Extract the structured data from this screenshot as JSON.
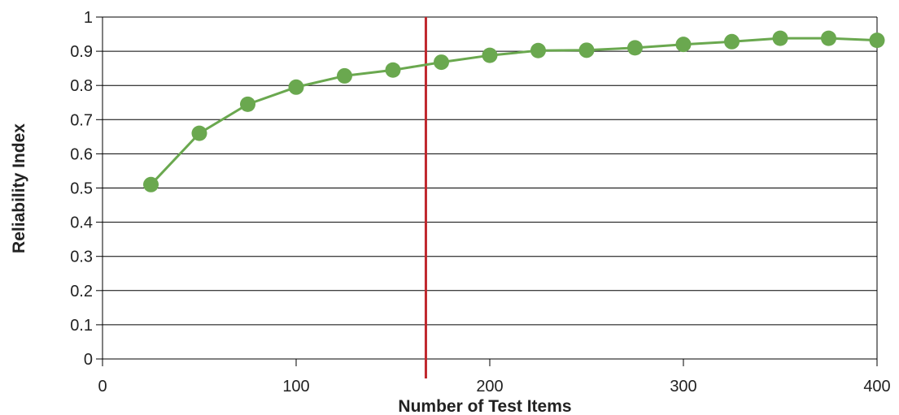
{
  "chart_data": {
    "type": "line",
    "title": "",
    "xlabel": "Number of Test Items",
    "ylabel": "Reliability Index",
    "xlim": [
      0,
      400
    ],
    "ylim": [
      0,
      1
    ],
    "x_ticks": [
      "0",
      "100",
      "200",
      "300",
      "400"
    ],
    "y_ticks": [
      "0",
      "0.1",
      "0.2",
      "0.3",
      "0.4",
      "0.5",
      "0.6",
      "0.7",
      "0.8",
      "0.9",
      "1"
    ],
    "grid": "horizontal",
    "series": [
      {
        "color": "#6aa84f",
        "x": [
          25,
          50,
          75,
          100,
          125,
          150,
          175,
          200,
          225,
          250,
          275,
          300,
          325,
          350,
          375,
          400
        ],
        "y": [
          0.51,
          0.66,
          0.745,
          0.795,
          0.828,
          0.845,
          0.868,
          0.888,
          0.902,
          0.903,
          0.91,
          0.92,
          0.928,
          0.938,
          0.938,
          0.932
        ]
      }
    ],
    "reference_line": {
      "x": 167,
      "color": "#c0282d"
    }
  }
}
